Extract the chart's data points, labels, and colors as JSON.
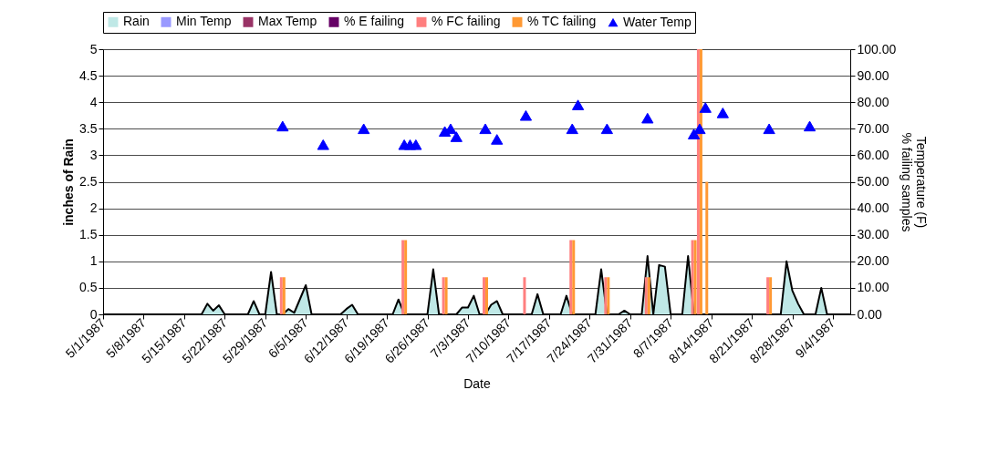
{
  "chart_data": {
    "type": "bar",
    "xlabel": "Date",
    "ylabel": "inches of Rain",
    "y2label": "Temperature (F)\n% failing samples",
    "grid": "y",
    "legend": "top",
    "xlim": [
      "1987-05-01",
      "1987-09-07"
    ],
    "xticks": [
      {
        "value": "1987-05-01",
        "label": "5/1/1987"
      },
      {
        "value": "1987-05-08",
        "label": "5/8/1987"
      },
      {
        "value": "1987-05-15",
        "label": "5/15/1987"
      },
      {
        "value": "1987-05-22",
        "label": "5/22/1987"
      },
      {
        "value": "1987-05-29",
        "label": "5/29/1987"
      },
      {
        "value": "1987-06-05",
        "label": "6/5/1987"
      },
      {
        "value": "1987-06-12",
        "label": "6/12/1987"
      },
      {
        "value": "1987-06-19",
        "label": "6/19/1987"
      },
      {
        "value": "1987-06-26",
        "label": "6/26/1987"
      },
      {
        "value": "1987-07-03",
        "label": "7/3/1987"
      },
      {
        "value": "1987-07-10",
        "label": "7/10/1987"
      },
      {
        "value": "1987-07-17",
        "label": "7/17/1987"
      },
      {
        "value": "1987-07-24",
        "label": "7/24/1987"
      },
      {
        "value": "1987-07-31",
        "label": "7/31/1987"
      },
      {
        "value": "1987-08-07",
        "label": "8/7/1987"
      },
      {
        "value": "1987-08-14",
        "label": "8/14/1987"
      },
      {
        "value": "1987-08-21",
        "label": "8/21/1987"
      },
      {
        "value": "1987-08-28",
        "label": "8/28/1987"
      },
      {
        "value": "1987-09-04",
        "label": "9/4/1987"
      }
    ],
    "ylim": [
      0,
      5
    ],
    "yticks": [
      0,
      0.5,
      1,
      1.5,
      2,
      2.5,
      3,
      3.5,
      4,
      4.5,
      5
    ],
    "y2lim": [
      0,
      100
    ],
    "y2ticks": [
      {
        "value": 0,
        "label": "0.00"
      },
      {
        "value": 10,
        "label": "10.00"
      },
      {
        "value": 20,
        "label": "20.00"
      },
      {
        "value": 30,
        "label": "30.00"
      },
      {
        "value": 40,
        "label": "40.00"
      },
      {
        "value": 50,
        "label": "50.00"
      },
      {
        "value": 60,
        "label": "60.00"
      },
      {
        "value": 70,
        "label": "70.00"
      },
      {
        "value": 80,
        "label": "80.00"
      },
      {
        "value": 90,
        "label": "90.00"
      },
      {
        "value": 100,
        "label": "100.00"
      }
    ],
    "series": [
      {
        "name": "Rain",
        "type": "area",
        "color": "#bfe8e6",
        "x": [
          "1987-05-01",
          "1987-05-18",
          "1987-05-19",
          "1987-05-20",
          "1987-05-21",
          "1987-05-22",
          "1987-05-26",
          "1987-05-27",
          "1987-05-28",
          "1987-05-29",
          "1987-05-30",
          "1987-05-31",
          "1987-06-01",
          "1987-06-02",
          "1987-06-03",
          "1987-06-05",
          "1987-06-06",
          "1987-06-11",
          "1987-06-12",
          "1987-06-13",
          "1987-06-14",
          "1987-06-20",
          "1987-06-21",
          "1987-06-22",
          "1987-06-26",
          "1987-06-27",
          "1987-06-28",
          "1987-07-01",
          "1987-07-02",
          "1987-07-03",
          "1987-07-04",
          "1987-07-05",
          "1987-07-06",
          "1987-07-07",
          "1987-07-08",
          "1987-07-09",
          "1987-07-14",
          "1987-07-15",
          "1987-07-16",
          "1987-07-19",
          "1987-07-20",
          "1987-07-21",
          "1987-07-25",
          "1987-07-26",
          "1987-07-27",
          "1987-07-29",
          "1987-07-30",
          "1987-07-31",
          "1987-08-02",
          "1987-08-03",
          "1987-08-04",
          "1987-08-05",
          "1987-08-06",
          "1987-08-07",
          "1987-08-09",
          "1987-08-10",
          "1987-08-11",
          "1987-08-26",
          "1987-08-27",
          "1987-08-28",
          "1987-08-29",
          "1987-08-30",
          "1987-09-01",
          "1987-09-02",
          "1987-09-03",
          "1987-09-07"
        ],
        "values": [
          0,
          0,
          0.2,
          0.07,
          0.17,
          0,
          0,
          0.25,
          0,
          0,
          0.8,
          0,
          0,
          0.1,
          0.03,
          0.55,
          0,
          0,
          0.1,
          0.18,
          0,
          0,
          0.28,
          0,
          0,
          0.85,
          0,
          0,
          0.13,
          0.13,
          0.35,
          0,
          0,
          0.18,
          0.25,
          0,
          0,
          0.38,
          0,
          0,
          0.35,
          0,
          0,
          0.85,
          0,
          0,
          0.07,
          0,
          0,
          1.1,
          0,
          0.93,
          0.9,
          0,
          0,
          1.1,
          0,
          0,
          1.0,
          0.45,
          0.2,
          0,
          0,
          0.5,
          0,
          0
        ]
      },
      {
        "name": "Min Temp",
        "type": "area",
        "color": "#9999ff",
        "axis": "y2"
      },
      {
        "name": "Max Temp",
        "type": "area",
        "color": "#993366",
        "axis": "y2"
      },
      {
        "name": "% E failing",
        "color": "#660066",
        "axis": "y2"
      },
      {
        "name": "% FC failing",
        "color": "#ff7f7f",
        "axis": "y2",
        "x": [
          "1987-06-01",
          "1987-06-22",
          "1987-06-29",
          "1987-07-06",
          "1987-07-13",
          "1987-07-21",
          "1987-07-27",
          "1987-08-03",
          "1987-08-11",
          "1987-08-12",
          "1987-08-24"
        ],
        "values": [
          14,
          28,
          14,
          14,
          14,
          28,
          14,
          14,
          28,
          100,
          14
        ]
      },
      {
        "name": "% TC failing",
        "color": "#ff9933",
        "axis": "y2",
        "x": [
          "1987-06-01",
          "1987-06-22",
          "1987-06-29",
          "1987-07-06",
          "1987-07-21",
          "1987-07-27",
          "1987-08-03",
          "1987-08-11",
          "1987-08-12",
          "1987-08-13",
          "1987-08-24"
        ],
        "values": [
          14,
          28,
          14,
          14,
          28,
          14,
          14,
          28,
          100,
          50,
          14
        ]
      },
      {
        "name": "Water Temp",
        "type": "scatter",
        "marker": "triangle",
        "color": "#0000ff",
        "axis": "y2",
        "x": [
          "1987-06-01",
          "1987-06-08",
          "1987-06-15",
          "1987-06-22",
          "1987-06-23",
          "1987-06-24",
          "1987-06-29",
          "1987-06-30",
          "1987-07-01",
          "1987-07-06",
          "1987-07-08",
          "1987-07-13",
          "1987-07-21",
          "1987-07-22",
          "1987-07-27",
          "1987-08-03",
          "1987-08-11",
          "1987-08-12",
          "1987-08-13",
          "1987-08-16",
          "1987-08-24",
          "1987-08-31"
        ],
        "values": [
          71,
          64,
          70,
          64,
          64,
          64,
          69,
          70,
          67,
          70,
          66,
          75,
          70,
          79,
          70,
          74,
          68,
          70,
          78,
          76,
          70,
          71
        ]
      }
    ]
  }
}
